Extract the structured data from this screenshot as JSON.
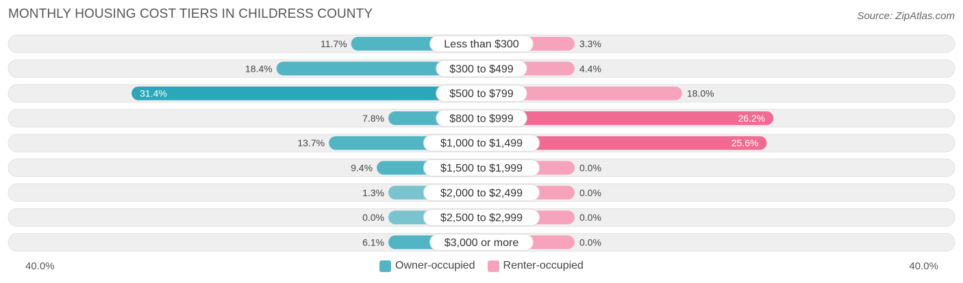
{
  "title": "MONTHLY HOUSING COST TIERS IN CHILDRESS COUNTY",
  "source": "Source: ZipAtlas.com",
  "colors": {
    "owner": "#52b5c4",
    "owner_strong": "#2aa7b8",
    "renter": "#f7a3be",
    "renter_strong": "#f06b93",
    "track": "#efefef"
  },
  "chart_data": {
    "type": "bar",
    "orientation": "horizontal-diverging",
    "categories": [
      "Less than $300",
      "$300 to $499",
      "$500 to $799",
      "$800 to $999",
      "$1,000 to $1,499",
      "$1,500 to $1,999",
      "$2,000 to $2,499",
      "$2,500 to $2,999",
      "$3,000 or more"
    ],
    "series": [
      {
        "name": "Owner-occupied",
        "values": [
          11.7,
          18.4,
          31.4,
          7.8,
          13.7,
          9.4,
          1.3,
          0.0,
          6.1
        ],
        "labels": [
          "11.7%",
          "18.4%",
          "31.4%",
          "7.8%",
          "13.7%",
          "9.4%",
          "1.3%",
          "0.0%",
          "6.1%"
        ]
      },
      {
        "name": "Renter-occupied",
        "values": [
          3.3,
          4.4,
          18.0,
          26.2,
          25.6,
          0.0,
          0.0,
          0.0,
          0.0
        ],
        "labels": [
          "3.3%",
          "4.4%",
          "18.0%",
          "26.2%",
          "25.6%",
          "0.0%",
          "0.0%",
          "0.0%",
          "0.0%"
        ]
      }
    ],
    "axis_min_label": "40.0%",
    "axis_max_label": "40.0%",
    "xlim": [
      -40,
      40
    ],
    "legend_position": "bottom-center"
  }
}
